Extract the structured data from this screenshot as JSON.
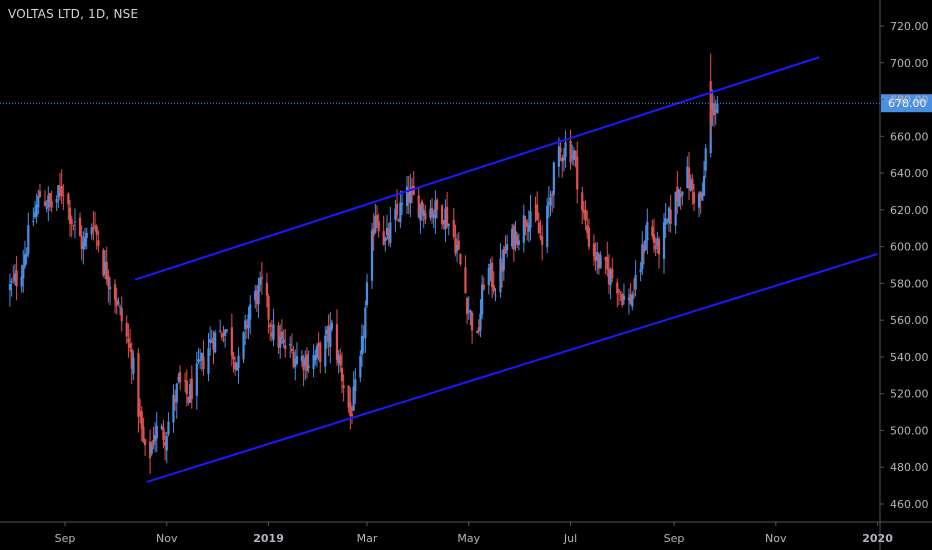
{
  "header": {
    "title": "VOLTAS LTD, 1D, NSE"
  },
  "colors": {
    "background": "#000000",
    "up": "#4a90e2",
    "down": "#e05252",
    "channel": "#1a1aff",
    "last_price_line": "#4a90e2",
    "axis_text": "#b2b5be",
    "axis_line": "#555555"
  },
  "chart_data": {
    "type": "candlestick",
    "title": "VOLTAS LTD, 1D, NSE",
    "xlabel": "",
    "ylabel": "",
    "ylim": [
      450,
      727
    ],
    "y_ticks": [
      "460.00",
      "480.00",
      "500.00",
      "520.00",
      "540.00",
      "560.00",
      "580.00",
      "600.00",
      "620.00",
      "640.00",
      "660.00",
      "680.00",
      "700.00",
      "720.00"
    ],
    "x_ticks": [
      {
        "label": "Sep",
        "date": "2018-09-01",
        "bold": false
      },
      {
        "label": "Nov",
        "date": "2018-11-01",
        "bold": false
      },
      {
        "label": "2019",
        "date": "2019-01-01",
        "bold": true
      },
      {
        "label": "Mar",
        "date": "2019-03-01",
        "bold": false
      },
      {
        "label": "May",
        "date": "2019-05-01",
        "bold": false
      },
      {
        "label": "Jul",
        "date": "2019-07-01",
        "bold": false
      },
      {
        "label": "Sep",
        "date": "2019-09-01",
        "bold": false
      },
      {
        "label": "Nov",
        "date": "2019-11-01",
        "bold": false
      },
      {
        "label": "2020",
        "date": "2020-01-01",
        "bold": true
      }
    ],
    "last_price": 678.0,
    "last_price_label": "678.00",
    "series": [
      {
        "kind": "ohlc_path",
        "waypoints": [
          [
            "2018-07-28",
            575
          ],
          [
            "2018-08-05",
            585
          ],
          [
            "2018-08-10",
            605
          ],
          [
            "2018-08-17",
            628
          ],
          [
            "2018-08-24",
            622
          ],
          [
            "2018-08-31",
            632
          ],
          [
            "2018-09-05",
            615
          ],
          [
            "2018-09-12",
            600
          ],
          [
            "2018-09-18",
            615
          ],
          [
            "2018-09-24",
            590
          ],
          [
            "2018-09-30",
            578
          ],
          [
            "2018-10-05",
            560
          ],
          [
            "2018-10-11",
            540
          ],
          [
            "2018-10-16",
            505
          ],
          [
            "2018-10-20",
            480
          ],
          [
            "2018-10-25",
            500
          ],
          [
            "2018-10-31",
            498
          ],
          [
            "2018-11-08",
            525
          ],
          [
            "2018-11-14",
            518
          ],
          [
            "2018-11-20",
            532
          ],
          [
            "2018-11-28",
            550
          ],
          [
            "2018-12-06",
            555
          ],
          [
            "2018-12-14",
            535
          ],
          [
            "2018-12-21",
            568
          ],
          [
            "2018-12-28",
            578
          ],
          [
            "2019-01-04",
            552
          ],
          [
            "2019-01-11",
            545
          ],
          [
            "2019-01-18",
            540
          ],
          [
            "2019-01-25",
            538
          ],
          [
            "2019-02-01",
            542
          ],
          [
            "2019-02-08",
            555
          ],
          [
            "2019-02-14",
            530
          ],
          [
            "2019-02-19",
            508
          ],
          [
            "2019-02-25",
            535
          ],
          [
            "2019-03-01",
            575
          ],
          [
            "2019-03-06",
            620
          ],
          [
            "2019-03-12",
            602
          ],
          [
            "2019-03-18",
            615
          ],
          [
            "2019-03-26",
            628
          ],
          [
            "2019-04-02",
            622
          ],
          [
            "2019-04-10",
            620
          ],
          [
            "2019-04-17",
            618
          ],
          [
            "2019-04-24",
            600
          ],
          [
            "2019-04-30",
            570
          ],
          [
            "2019-05-06",
            548
          ],
          [
            "2019-05-11",
            590
          ],
          [
            "2019-05-17",
            578
          ],
          [
            "2019-05-24",
            600
          ],
          [
            "2019-06-01",
            610
          ],
          [
            "2019-06-08",
            622
          ],
          [
            "2019-06-14",
            600
          ],
          [
            "2019-06-22",
            645
          ],
          [
            "2019-06-28",
            655
          ],
          [
            "2019-07-03",
            650
          ],
          [
            "2019-07-08",
            620
          ],
          [
            "2019-07-13",
            600
          ],
          [
            "2019-07-20",
            588
          ],
          [
            "2019-07-28",
            582
          ],
          [
            "2019-08-04",
            568
          ],
          [
            "2019-08-10",
            580
          ],
          [
            "2019-08-16",
            612
          ],
          [
            "2019-08-22",
            598
          ],
          [
            "2019-08-28",
            612
          ],
          [
            "2019-09-03",
            628
          ],
          [
            "2019-09-08",
            640
          ],
          [
            "2019-09-13",
            628
          ],
          [
            "2019-09-18",
            625
          ],
          [
            "2019-09-21",
            665
          ],
          [
            "2019-09-24",
            675
          ],
          [
            "2019-09-27",
            678
          ]
        ]
      }
    ],
    "channel_lines": [
      {
        "name": "",
        "start": [
          "2018-10-13",
          582
        ],
        "end": [
          "2019-11-27",
          703
        ]
      },
      {
        "name": "",
        "start": [
          "2018-10-20",
          472
        ],
        "end": [
          "2020-01-01",
          596
        ]
      }
    ],
    "grid": false,
    "legend": "none"
  }
}
